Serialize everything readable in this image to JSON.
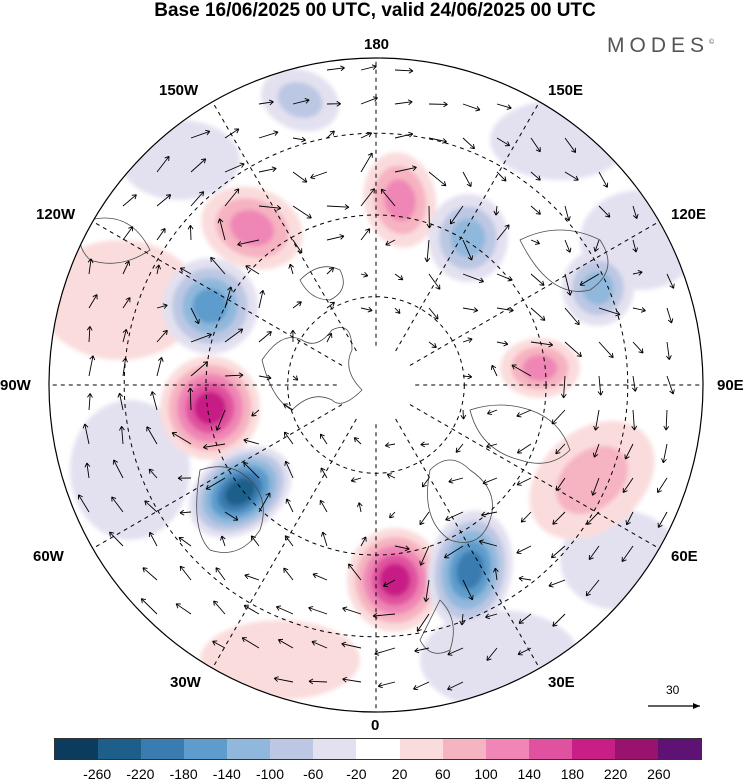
{
  "title": "Base 16/06/2025 00 UTC, valid 24/06/2025 00 UTC",
  "logo": "MODES",
  "logo_mark": "©",
  "longitude_labels": {
    "n180": "180",
    "w150": "150W",
    "e150": "150E",
    "w120": "120W",
    "e120": "120E",
    "w90": "90W",
    "e90": "90E",
    "w60": "60W",
    "e60": "60E",
    "w30": "30W",
    "e30": "30E",
    "s0": "0"
  },
  "reference_vector": "30",
  "colorbar": {
    "colors": [
      "#0b3c5d",
      "#1d5f8a",
      "#3a7cb0",
      "#5d9ccc",
      "#8fb8dc",
      "#bcc7e3",
      "#e3e1f0",
      "#ffffff",
      "#fbdcdc",
      "#f6b3c1",
      "#ef86b5",
      "#e0529f",
      "#c71f86",
      "#99126e",
      "#5e1374"
    ],
    "ticks": [
      "-260",
      "-220",
      "-180",
      "-140",
      "-100",
      "-60",
      "-20",
      "20",
      "60",
      "100",
      "140",
      "180",
      "220",
      "260"
    ]
  },
  "anomaly_centers": [
    {
      "name": "neg-150w",
      "value": -80
    },
    {
      "name": "pos-135w",
      "value": 120
    },
    {
      "name": "neg-105w",
      "value": -160
    },
    {
      "name": "pos-95w",
      "value": 200
    },
    {
      "name": "neg-70w",
      "value": -220
    },
    {
      "name": "pos-15e",
      "value": 180
    },
    {
      "name": "neg-35e",
      "value": -180
    },
    {
      "name": "pos-170e",
      "value": 120
    },
    {
      "name": "neg-145e",
      "value": -120
    },
    {
      "name": "neg-115e",
      "value": -100
    },
    {
      "name": "pos-90e",
      "value": 100
    },
    {
      "name": "pos-60e",
      "value": 60
    }
  ]
}
